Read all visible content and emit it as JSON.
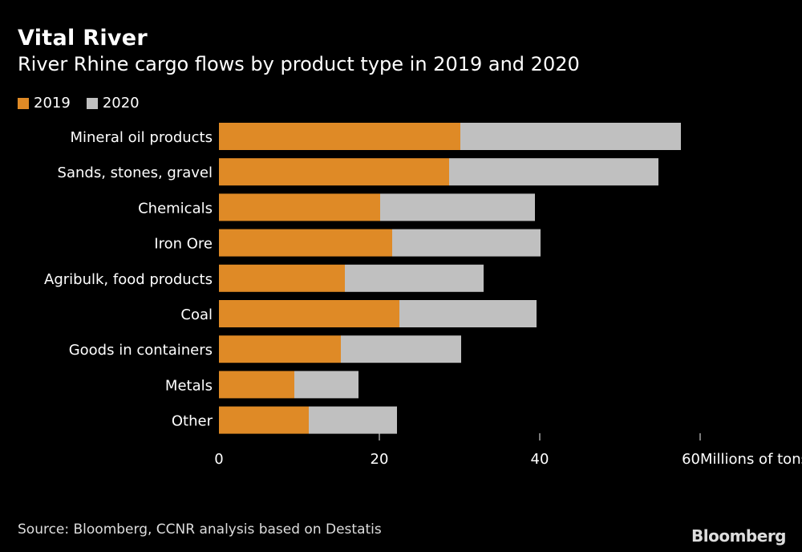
{
  "chart_data": {
    "type": "bar",
    "orientation": "horizontal",
    "stacked": true,
    "title": "Vital River",
    "subtitle": "River Rhine cargo flows by product type in 2019 and 2020",
    "xlabel": "Millions of tons (annual)",
    "ylabel": "",
    "xlim": [
      0,
      60
    ],
    "xticks": [
      "0",
      "20",
      "40",
      "60"
    ],
    "grid": false,
    "legend_position": "top-left",
    "categories": [
      "Mineral oil products",
      "Sands, stones, gravel",
      "Chemicals",
      "Iron Ore",
      "Agribulk, food products",
      "Coal",
      "Goods in containers",
      "Metals",
      "Other"
    ],
    "series": [
      {
        "name": "2019",
        "color": "#df8a26",
        "values": [
          30.1,
          28.7,
          20.1,
          21.6,
          15.7,
          22.5,
          15.2,
          9.4,
          11.2
        ]
      },
      {
        "name": "2020",
        "color": "#c0c0c0",
        "values": [
          27.5,
          26.1,
          19.3,
          18.5,
          17.3,
          17.1,
          15.0,
          8.0,
          11.0
        ]
      }
    ]
  },
  "source": "Source: Bloomberg, CCNR analysis based on Destatis",
  "logo": "Bloomberg"
}
